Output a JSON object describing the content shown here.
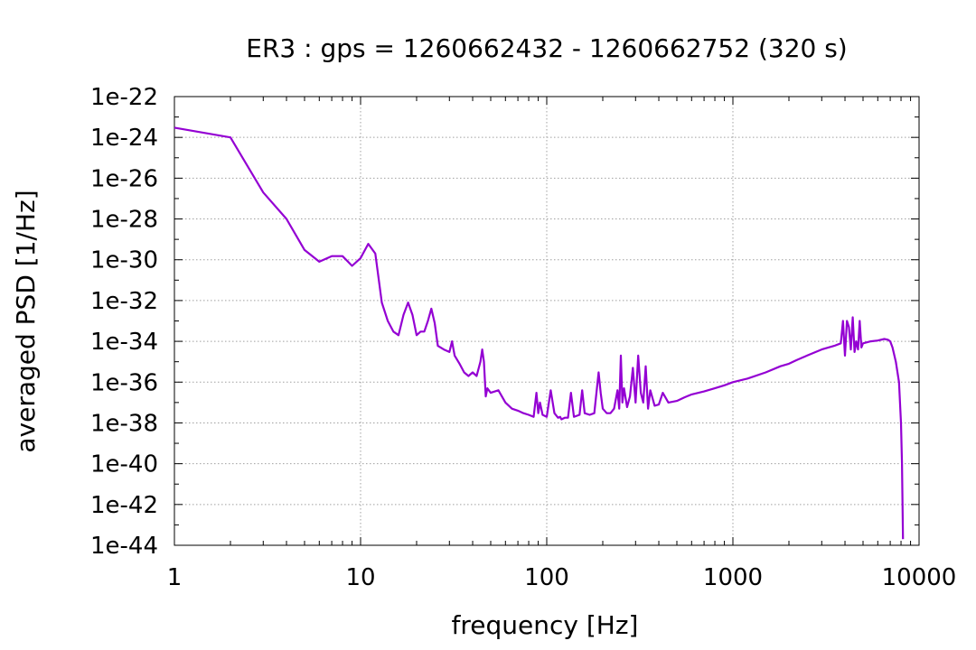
{
  "chart_data": {
    "type": "line",
    "title": "ER3 : gps = 1260662432 - 1260662752 (320 s)",
    "xlabel": "frequency [Hz]",
    "ylabel": "averaged PSD [1/Hz]",
    "x_scale": "log",
    "y_scale": "log",
    "xlim": [
      1,
      10000
    ],
    "ylim": [
      1e-44,
      1e-22
    ],
    "x_ticks": [
      1,
      10,
      100,
      1000,
      10000
    ],
    "x_tick_labels": [
      "1",
      "10",
      "100",
      "1000",
      "10000"
    ],
    "y_ticks": [
      1e-44,
      1e-42,
      1e-40,
      1e-38,
      1e-36,
      1e-34,
      1e-32,
      1e-30,
      1e-28,
      1e-26,
      1e-24,
      1e-22
    ],
    "y_tick_labels": [
      "1e-44",
      "1e-42",
      "1e-40",
      "1e-38",
      "1e-36",
      "1e-34",
      "1e-32",
      "1e-30",
      "1e-28",
      "1e-26",
      "1e-24",
      "1e-22"
    ],
    "grid": true,
    "colors": {
      "series": "#9400d3"
    },
    "series": [
      {
        "x": [
          1,
          2,
          3,
          4,
          5,
          6,
          7,
          8,
          9,
          10,
          11,
          12,
          13,
          14,
          15,
          16,
          17,
          18,
          19,
          20,
          21,
          22,
          23,
          24,
          25,
          26,
          28,
          30,
          31,
          32,
          34,
          36,
          38,
          40,
          42,
          44,
          45,
          46,
          47,
          48,
          50,
          55,
          60,
          65,
          70,
          75,
          80,
          85,
          88,
          90,
          92,
          95,
          100,
          105,
          110,
          115,
          118,
          120,
          125,
          130,
          135,
          140,
          150,
          155,
          160,
          170,
          180,
          185,
          190,
          195,
          200,
          210,
          220,
          230,
          240,
          245,
          250,
          255,
          260,
          270,
          280,
          290,
          300,
          310,
          320,
          330,
          340,
          350,
          360,
          380,
          400,
          420,
          450,
          500,
          550,
          600,
          700,
          800,
          900,
          1000,
          1200,
          1500,
          1800,
          2000,
          2200,
          2500,
          3000,
          3500,
          3800,
          3900,
          4000,
          4100,
          4200,
          4300,
          4400,
          4500,
          4600,
          4700,
          4800,
          4900,
          5000,
          5500,
          6000,
          6500,
          6800,
          7000,
          7200,
          7500,
          7800,
          8000,
          8100,
          8150,
          8192
        ],
        "y": [
          3e-24,
          1e-24,
          2e-27,
          1e-28,
          3e-30,
          8e-31,
          1.5e-30,
          1.5e-30,
          5e-31,
          1.2e-30,
          6e-30,
          2e-30,
          8e-33,
          1e-33,
          3e-34,
          2e-34,
          2e-33,
          8e-33,
          2e-33,
          2e-34,
          3e-34,
          3e-34,
          1e-33,
          4e-33,
          8e-34,
          6e-35,
          4e-35,
          3e-35,
          1e-34,
          2e-35,
          8e-36,
          3e-36,
          2e-36,
          3e-36,
          2e-36,
          1e-35,
          4e-35,
          1e-35,
          2e-37,
          5e-37,
          3e-37,
          4e-37,
          1e-37,
          5e-38,
          4e-38,
          3e-38,
          2.5e-38,
          2e-38,
          3e-37,
          3e-38,
          1e-37,
          2.5e-38,
          2e-38,
          4e-37,
          3e-38,
          1.8e-38,
          2e-38,
          1.5e-38,
          1.8e-38,
          1.8e-38,
          3e-37,
          2e-38,
          2.5e-38,
          4e-37,
          3e-38,
          2.5e-38,
          3e-38,
          3e-37,
          3e-36,
          3e-37,
          5e-38,
          3e-38,
          3e-38,
          5e-38,
          4e-37,
          5e-38,
          2e-35,
          1e-37,
          5e-37,
          6e-38,
          2e-37,
          5e-36,
          1e-37,
          2e-35,
          3e-37,
          1e-37,
          6e-36,
          5e-38,
          4e-37,
          7e-38,
          8e-38,
          3e-37,
          1e-37,
          1.2e-37,
          1.8e-37,
          2.5e-37,
          3.5e-37,
          5e-37,
          7e-37,
          1e-36,
          1.5e-36,
          3e-36,
          6e-36,
          8e-36,
          1.2e-35,
          2e-35,
          4e-35,
          6e-35,
          8e-35,
          1e-33,
          2e-35,
          1e-33,
          5e-34,
          4e-35,
          1.5e-33,
          3e-35,
          1e-34,
          4e-35,
          1e-33,
          5e-35,
          8e-35,
          1e-34,
          1.1e-34,
          1.3e-34,
          1.2e-34,
          1e-34,
          5e-35,
          1e-35,
          1e-36,
          1e-38,
          1e-40,
          1e-42,
          2e-44
        ]
      }
    ]
  }
}
